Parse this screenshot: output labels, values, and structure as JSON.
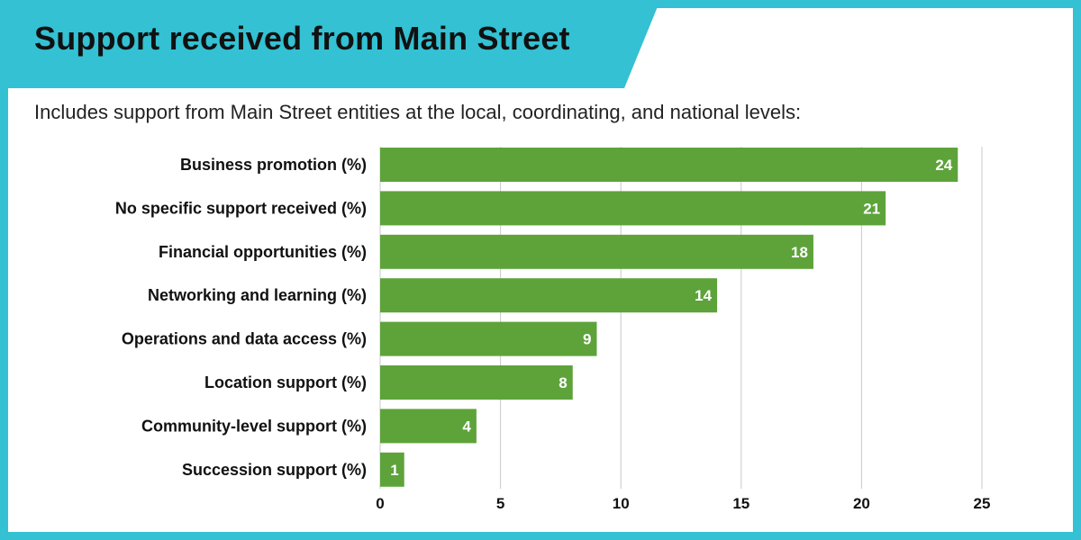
{
  "header": {
    "title": "Support received from Main Street",
    "subtitle": "Includes support from Main Street entities at the local, coordinating, and national levels:"
  },
  "colors": {
    "frame": "#33c1d3",
    "background": "#ffffff",
    "bar": "#5da33a",
    "grid": "#c8c8c8",
    "text": "#111111",
    "data_label": "#ffffff"
  },
  "chart_data": {
    "type": "bar",
    "orientation": "horizontal",
    "title": "",
    "xlabel": "",
    "ylabel": "",
    "categories": [
      "Business promotion (%)",
      "No specific support received (%)",
      "Financial opportunities (%)",
      "Networking and learning (%)",
      "Operations and data access (%)",
      "Location support (%)",
      "Community-level support (%)",
      "Succession support (%)"
    ],
    "values": [
      24,
      21,
      18,
      14,
      9,
      8,
      4,
      1
    ],
    "xlim": [
      0,
      25
    ],
    "xticks": [
      0,
      5,
      10,
      15,
      20,
      25
    ],
    "grid": "vertical",
    "legend": "none",
    "data_labels": true
  }
}
